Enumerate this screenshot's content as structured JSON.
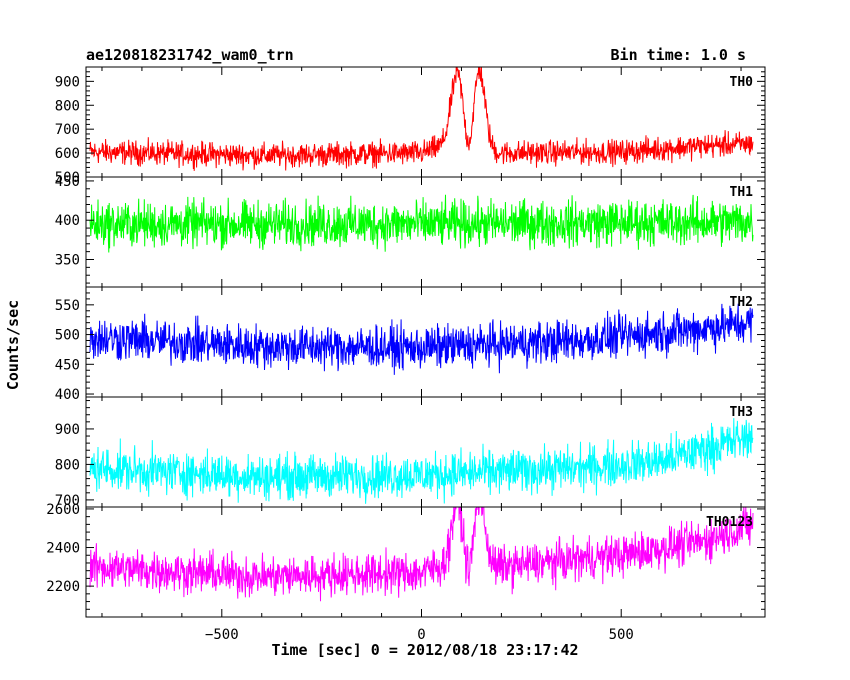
{
  "header": {
    "title": "ae120818231742_wam0_trn",
    "bin_time": "Bin time: 1.0 s"
  },
  "chart_data": {
    "type": "line",
    "xlabel": "Time [sec] 0 = 2012/08/18 23:17:42",
    "ylabel": "Counts/sec",
    "xlim": [
      -840,
      860
    ],
    "x_ticks": [
      -500,
      0,
      500
    ],
    "x_tick_labels": [
      "−500",
      "0",
      "500"
    ],
    "x_range_data": [
      -830,
      830
    ],
    "series": [
      {
        "name": "TH0",
        "color": "#ff0000",
        "ylim": [
          500,
          960
        ],
        "y_ticks": [
          500,
          600,
          700,
          800,
          900
        ],
        "level": [
          [
            -830,
            605
          ],
          [
            -400,
            590
          ],
          [
            0,
            600
          ],
          [
            70,
            640
          ],
          [
            200,
            600
          ],
          [
            500,
            605
          ],
          [
            700,
            630
          ],
          [
            830,
            640
          ]
        ],
        "noise": 45,
        "peaks": [
          [
            90,
            300,
            22
          ],
          [
            145,
            330,
            20
          ]
        ],
        "dip": [
          118,
          90,
          15
        ]
      },
      {
        "name": "TH1",
        "color": "#00ff00",
        "ylim": [
          315,
          455
        ],
        "y_ticks": [
          350,
          400,
          450
        ],
        "level": [
          [
            -830,
            395
          ],
          [
            0,
            395
          ],
          [
            830,
            398
          ]
        ],
        "noise": 26,
        "peaks": [],
        "dip": null
      },
      {
        "name": "TH2",
        "color": "#0000ff",
        "ylim": [
          395,
          580
        ],
        "y_ticks": [
          400,
          450,
          500,
          550
        ],
        "level": [
          [
            -830,
            495
          ],
          [
            -400,
            480
          ],
          [
            0,
            478
          ],
          [
            400,
            490
          ],
          [
            700,
            510
          ],
          [
            830,
            520
          ]
        ],
        "noise": 32,
        "peaks": [],
        "dip": null
      },
      {
        "name": "TH3",
        "color": "#00ffff",
        "ylim": [
          680,
          990
        ],
        "y_ticks": [
          700,
          800,
          900
        ],
        "level": [
          [
            -830,
            790
          ],
          [
            -400,
            765
          ],
          [
            0,
            770
          ],
          [
            400,
            790
          ],
          [
            600,
            810
          ],
          [
            830,
            880
          ]
        ],
        "noise": 55,
        "peaks": [],
        "dip": null
      },
      {
        "name": "TH0123",
        "color": "#ff00ff",
        "ylim": [
          2040,
          2610
        ],
        "y_ticks": [
          2200,
          2400,
          2600
        ],
        "level": [
          [
            -830,
            2300
          ],
          [
            -400,
            2250
          ],
          [
            0,
            2270
          ],
          [
            60,
            2310
          ],
          [
            200,
            2300
          ],
          [
            500,
            2360
          ],
          [
            700,
            2430
          ],
          [
            830,
            2520
          ]
        ],
        "noise": 95,
        "peaks": [
          [
            90,
            330,
            20
          ],
          [
            145,
            350,
            20
          ]
        ],
        "dip": [
          118,
          120,
          14
        ]
      }
    ]
  }
}
